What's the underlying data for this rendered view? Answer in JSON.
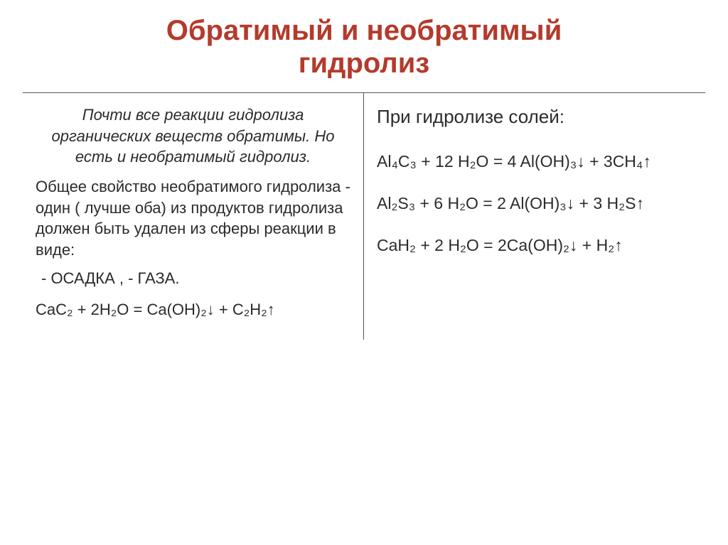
{
  "title_color": "#b43a2c",
  "text_color": "#2b2b2b",
  "border_color": "#555555",
  "background_color": "#ffffff",
  "title_line1": "Обратимый и необратимый",
  "title_line2": "гидролиз",
  "left": {
    "intro": "Почти все реакции гидролиза органических веществ обратимы. Но есть и необратимый гидролиз.",
    "para1": "Общее свойство необратимого гидролиза - один ( лучше оба) из продуктов гидролиза должен быть удален из сферы реакции в виде:",
    "bullet_line": "- ОСАДКА ,    - ГАЗА.",
    "equation": "CaC₂ + 2H₂O = Ca(OH)₂↓ + C₂H₂↑"
  },
  "right": {
    "heading": "При гидролизе солей:",
    "eq1": "Al₄C₃ + 12 H₂O = 4 Al(OH)₃↓ + 3CH₄↑",
    "eq2": "Al₂S₃ + 6 H₂O = 2 Al(OH)₃↓ + 3 H₂S↑",
    "eq3": "CaH₂ + 2 H₂O = 2Ca(OH)₂↓ + H₂↑"
  }
}
